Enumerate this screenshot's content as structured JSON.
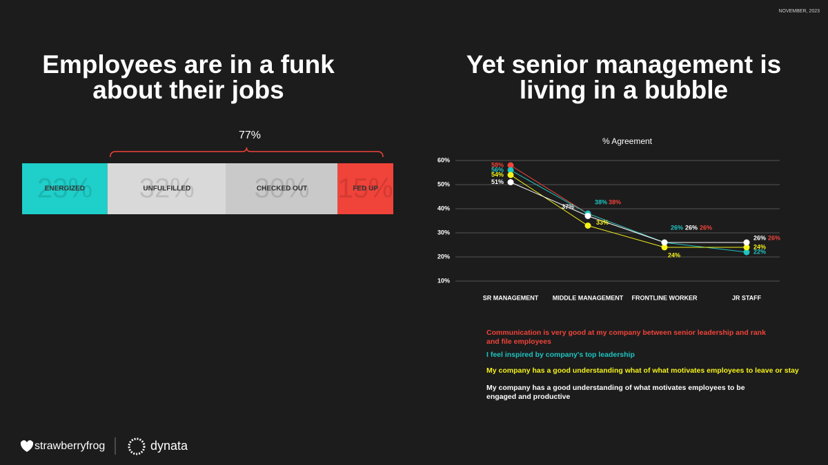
{
  "date": "NOVEMBER, 2023",
  "left_title": [
    "Employees are in a funk",
    "about their jobs"
  ],
  "right_title": [
    "Yet senior management is",
    "living in a bubble"
  ],
  "chart_data": [
    {
      "type": "stacked_bar",
      "categories": [
        "ENERGIZED",
        "UNFULFILLED",
        "CHECKED OUT",
        "FED UP"
      ],
      "values": [
        23,
        32,
        30,
        15
      ],
      "value_labels": [
        "23%",
        "32%",
        "30%",
        "15%"
      ],
      "colors": [
        "#1fcfc9",
        "#d9d9d9",
        "#c9c9c9",
        "#f0433a"
      ],
      "annotation": "77%"
    },
    {
      "type": "line",
      "title": "% Agreement",
      "categories": [
        "SR MANAGEMENT",
        "MIDDLE MANAGEMENT",
        "FRONTLINE WORKER",
        "JR STAFF"
      ],
      "ylim": [
        10,
        60
      ],
      "yticks": [
        {
          "value": 10,
          "label": "10%"
        },
        {
          "value": 20,
          "label": "20%"
        },
        {
          "value": 30,
          "label": "30%"
        },
        {
          "value": 40,
          "label": "40%"
        },
        {
          "value": 50,
          "label": "50%"
        },
        {
          "value": 60,
          "label": "60%"
        }
      ],
      "grid": true,
      "series": [
        {
          "name": "Communication is very good at my company between senior leadership and rank and file employees",
          "color": "#f0433a",
          "values": [
            58,
            38,
            26,
            26
          ],
          "value_labels": [
            "58%",
            "38%",
            "26%",
            "26%"
          ]
        },
        {
          "name": "I feel inspired by company's top leadership",
          "color": "#1fc3c0",
          "values": [
            56,
            38,
            26,
            22
          ],
          "value_labels": [
            "56%",
            "38%",
            "26%",
            "22%"
          ]
        },
        {
          "name": "My company has a good understanding what of what motivates employees to leave or stay",
          "color": "#f5f31a",
          "values": [
            54,
            33,
            24,
            24
          ],
          "value_labels": [
            "54%",
            "33%",
            "24%",
            "24%"
          ]
        },
        {
          "name": "My company has a good understanding of what motivates employees to be engaged and productive",
          "color": "#ffffff",
          "values": [
            51,
            37,
            26,
            26
          ],
          "value_labels": [
            "51%",
            "37%",
            "26%",
            "26%"
          ]
        }
      ]
    }
  ],
  "footer": {
    "logos": [
      "strawberryfrog",
      "dynata"
    ]
  }
}
